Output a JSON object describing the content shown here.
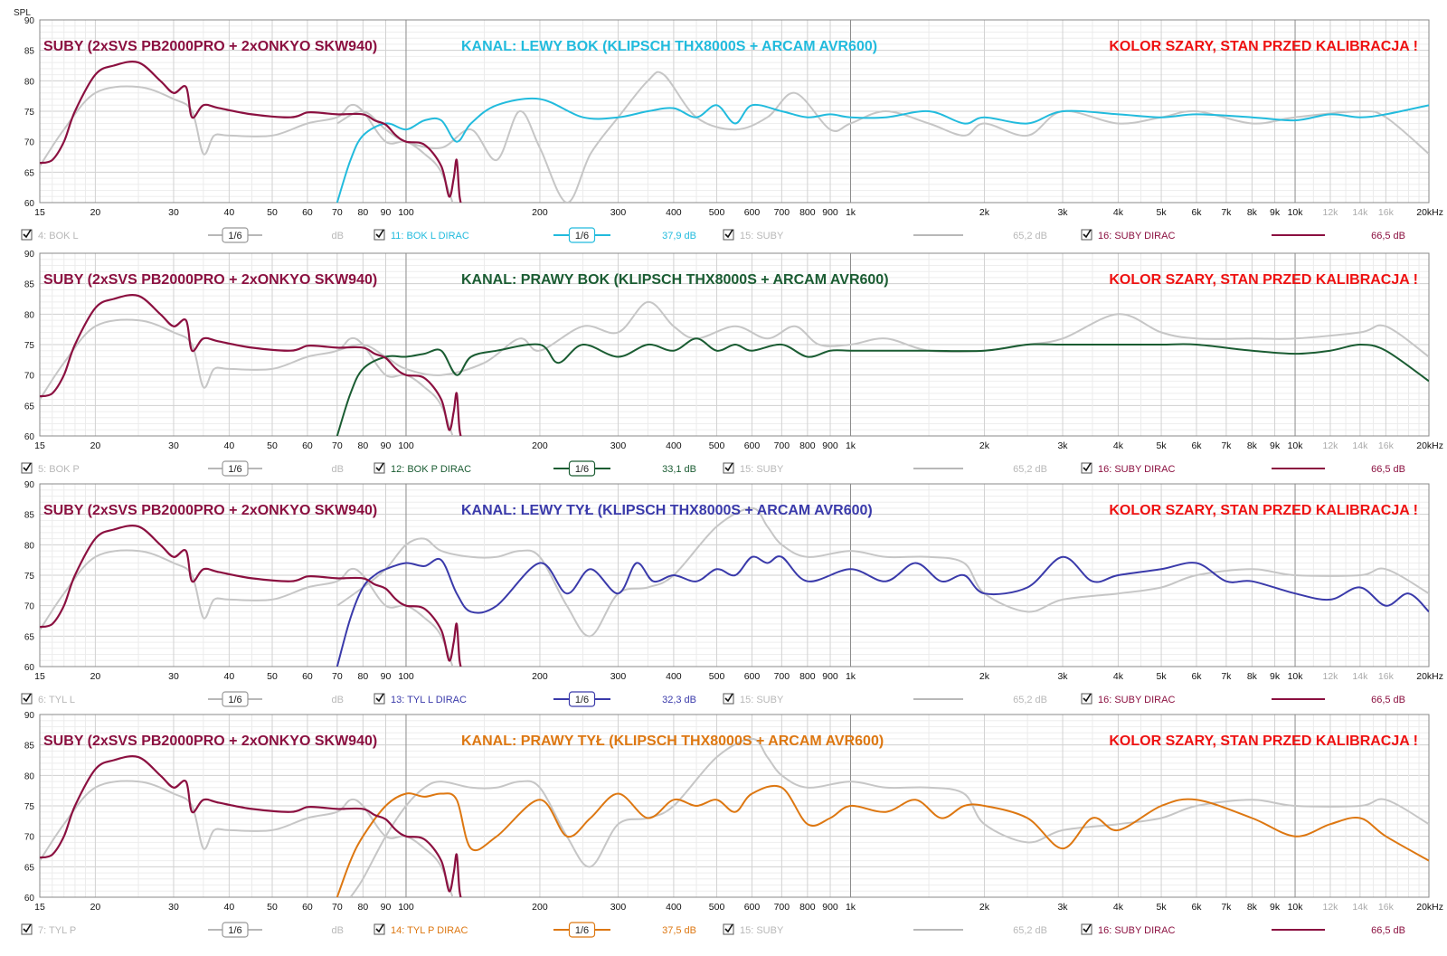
{
  "y_axis_label": "SPL",
  "x_ticks": [
    {
      "f": 15,
      "label": "15"
    },
    {
      "f": 20,
      "label": "20"
    },
    {
      "f": 30,
      "label": "30"
    },
    {
      "f": 40,
      "label": "40"
    },
    {
      "f": 50,
      "label": "50"
    },
    {
      "f": 60,
      "label": "60"
    },
    {
      "f": 70,
      "label": "70"
    },
    {
      "f": 80,
      "label": "80"
    },
    {
      "f": 90,
      "label": "90"
    },
    {
      "f": 100,
      "label": "100"
    },
    {
      "f": 200,
      "label": "200"
    },
    {
      "f": 300,
      "label": "300"
    },
    {
      "f": 400,
      "label": "400"
    },
    {
      "f": 500,
      "label": "500"
    },
    {
      "f": 600,
      "label": "600"
    },
    {
      "f": 700,
      "label": "700"
    },
    {
      "f": 800,
      "label": "800"
    },
    {
      "f": 900,
      "label": "900"
    },
    {
      "f": 1000,
      "label": "1k"
    },
    {
      "f": 2000,
      "label": "2k"
    },
    {
      "f": 3000,
      "label": "3k"
    },
    {
      "f": 4000,
      "label": "4k"
    },
    {
      "f": 5000,
      "label": "5k"
    },
    {
      "f": 6000,
      "label": "6k"
    },
    {
      "f": 7000,
      "label": "7k"
    },
    {
      "f": 8000,
      "label": "8k"
    },
    {
      "f": 9000,
      "label": "9k"
    },
    {
      "f": 10000,
      "label": "10k"
    },
    {
      "f": 12000,
      "label": "12k",
      "light": true
    },
    {
      "f": 14000,
      "label": "14k",
      "light": true
    },
    {
      "f": 16000,
      "label": "16k",
      "light": true
    },
    {
      "f": 20000,
      "label": "20kHz"
    }
  ],
  "y_ticks": [
    60,
    65,
    70,
    75,
    80,
    85,
    90
  ],
  "panels": [
    {
      "title_left": "SUBY (2xSVS PB2000PRO + 2xONKYO SKW940)",
      "title_center": "KANAL: LEWY BOK (KLIPSCH THX8000S + ARCAM AVR600)",
      "title_right": "KOLOR SZARY, STAN PRZED KALIBRACJA !",
      "color": "#22bbdd",
      "legend": [
        {
          "label": "4: BOK L",
          "active": false,
          "smoothing": "1/6",
          "value": "dB"
        },
        {
          "label": "11: BOK L DIRAC",
          "active": true,
          "smoothing": "1/6",
          "value": "37,9 dB"
        },
        {
          "label": "15: SUBY",
          "active": false,
          "value": "65,2 dB"
        },
        {
          "label": "16: SUBY DIRAC",
          "active": true,
          "value": "66,5 dB"
        }
      ]
    },
    {
      "title_left": "SUBY (2xSVS PB2000PRO + 2xONKYO SKW940)",
      "title_center": "KANAL: PRAWY BOK (KLIPSCH THX8000S + ARCAM AVR600)",
      "title_right": "KOLOR SZARY, STAN PRZED KALIBRACJA !",
      "color": "#1a5c32",
      "legend": [
        {
          "label": "5: BOK P",
          "active": false,
          "smoothing": "1/6",
          "value": "dB"
        },
        {
          "label": "12: BOK P DIRAC",
          "active": true,
          "smoothing": "1/6",
          "value": "33,1 dB"
        },
        {
          "label": "15: SUBY",
          "active": false,
          "value": "65,2 dB"
        },
        {
          "label": "16: SUBY DIRAC",
          "active": true,
          "value": "66,5 dB"
        }
      ]
    },
    {
      "title_left": "SUBY (2xSVS PB2000PRO + 2xONKYO SKW940)",
      "title_center": "KANAL: LEWY TYŁ (KLIPSCH THX8000S + ARCAM AVR600)",
      "title_right": "KOLOR SZARY, STAN PRZED KALIBRACJA !",
      "color": "#3a3aaa",
      "legend": [
        {
          "label": "6: TYL L",
          "active": false,
          "smoothing": "1/6",
          "value": "dB"
        },
        {
          "label": "13: TYL L DIRAC",
          "active": true,
          "smoothing": "1/6",
          "value": "32,3 dB"
        },
        {
          "label": "15: SUBY",
          "active": false,
          "value": "65,2 dB"
        },
        {
          "label": "16: SUBY DIRAC",
          "active": true,
          "value": "66,5 dB"
        }
      ]
    },
    {
      "title_left": "SUBY (2xSVS PB2000PRO + 2xONKYO SKW940)",
      "title_center": "KANAL: PRAWY TYŁ (KLIPSCH THX8000S + ARCAM AVR600)",
      "title_right": "KOLOR SZARY, STAN PRZED KALIBRACJA !",
      "color": "#dd7711",
      "legend": [
        {
          "label": "7: TYL P",
          "active": false,
          "smoothing": "1/6",
          "value": "dB"
        },
        {
          "label": "14: TYL P DIRAC",
          "active": true,
          "smoothing": "1/6",
          "value": "37,5 dB"
        },
        {
          "label": "15: SUBY",
          "active": false,
          "value": "65,2 dB"
        },
        {
          "label": "16: SUBY DIRAC",
          "active": true,
          "value": "66,5 dB"
        }
      ]
    }
  ],
  "colors": {
    "sub_title": "#8b1040",
    "warning": "#ee1111",
    "grey_curve": "#c6c6c6",
    "subs_curve": "#8b1040"
  },
  "chart_data": [
    {
      "type": "line",
      "xscale": "log",
      "xlim": [
        15,
        20000
      ],
      "ylim": [
        60,
        90
      ],
      "ylabel": "SPL",
      "grid": true,
      "series": [
        {
          "name": "16: SUBY DIRAC",
          "role": "subs_dirac",
          "x": [
            15,
            16,
            17,
            18,
            20,
            22,
            25,
            28,
            30,
            32,
            33,
            35,
            38,
            45,
            55,
            60,
            65,
            70,
            80,
            85,
            90,
            95,
            100,
            110,
            120,
            125,
            128,
            130,
            132,
            135
          ],
          "y": [
            66.5,
            67,
            70,
            75,
            81,
            82.5,
            83,
            80,
            78,
            79,
            74,
            76,
            75.5,
            74.5,
            74,
            74.8,
            74.7,
            74.5,
            74.5,
            73.5,
            72.8,
            71,
            70,
            69.5,
            66,
            61,
            64,
            67,
            61,
            58
          ]
        },
        {
          "name": "15: SUBY",
          "role": "subs_before",
          "x": [
            15,
            17,
            20,
            25,
            30,
            33,
            35,
            37,
            40,
            50,
            60,
            70,
            75,
            80,
            90,
            100,
            110,
            120,
            130
          ],
          "y": [
            66,
            72,
            78,
            79,
            77,
            75,
            68,
            71,
            71,
            71,
            73,
            74,
            76,
            75,
            70,
            70,
            68,
            65,
            58
          ]
        },
        {
          "name": "4: BOK L",
          "role": "before",
          "x": [
            70,
            80,
            90,
            100,
            120,
            140,
            160,
            180,
            200,
            230,
            260,
            300,
            350,
            380,
            450,
            550,
            650,
            750,
            900,
            1000,
            1200,
            1500,
            1800,
            2000,
            2500,
            3000,
            4000,
            5000,
            6000,
            8000,
            10000,
            14000,
            16000,
            20000
          ],
          "y": [
            73,
            75,
            72,
            70,
            69,
            72,
            67,
            75,
            69,
            60,
            68,
            74,
            80,
            81,
            74,
            72,
            74,
            78,
            72,
            73,
            75,
            73,
            71,
            73,
            71,
            75,
            73,
            74,
            75,
            73,
            74,
            75,
            74,
            68
          ]
        },
        {
          "name": "11: BOK L DIRAC",
          "role": "after",
          "x": [
            70,
            75,
            80,
            90,
            100,
            110,
            120,
            130,
            140,
            160,
            200,
            250,
            300,
            350,
            400,
            450,
            500,
            550,
            600,
            700,
            800,
            900,
            1000,
            1200,
            1500,
            1800,
            2000,
            2500,
            3000,
            4000,
            5000,
            6000,
            8000,
            10000,
            12000,
            14000,
            16000,
            20000
          ],
          "y": [
            60,
            67,
            71,
            73,
            72,
            73.5,
            73.5,
            70,
            73,
            76,
            77,
            74,
            74,
            75,
            75.5,
            74,
            76,
            73,
            76,
            75,
            74,
            74.5,
            74,
            74,
            75,
            73,
            74,
            73,
            75,
            74.5,
            74,
            74.5,
            74,
            73.5,
            74.5,
            74,
            74.5,
            76
          ]
        },
        {
          "name": "5: BOK P",
          "role": "before",
          "x": [
            70,
            80,
            90,
            100,
            120,
            150,
            180,
            200,
            250,
            300,
            350,
            400,
            450,
            550,
            650,
            750,
            850,
            1000,
            1200,
            1500,
            2000,
            2500,
            3000,
            4000,
            5000,
            6000,
            8000,
            10000,
            14000,
            16000,
            20000
          ],
          "y": [
            74,
            75,
            73,
            71,
            70,
            72,
            76,
            74,
            78,
            77,
            82,
            78,
            76,
            78,
            76,
            78,
            75,
            75,
            76,
            74,
            74,
            75,
            76,
            80,
            77,
            76,
            76,
            76,
            77,
            78,
            73
          ]
        },
        {
          "name": "12: BOK P DIRAC",
          "role": "after",
          "x": [
            70,
            75,
            80,
            90,
            100,
            110,
            120,
            130,
            140,
            160,
            200,
            220,
            250,
            300,
            350,
            400,
            450,
            500,
            550,
            600,
            700,
            800,
            900,
            1000,
            1200,
            1500,
            2000,
            2500,
            3000,
            4000,
            5000,
            6000,
            8000,
            10000,
            12000,
            14000,
            16000,
            20000
          ],
          "y": [
            60,
            67,
            71,
            73,
            73,
            73.5,
            74,
            70,
            73,
            74,
            75,
            72,
            75,
            73,
            75,
            74,
            76,
            74,
            75,
            74,
            75,
            73,
            74,
            74,
            74,
            74,
            74,
            75,
            75,
            75,
            75,
            75,
            74,
            73.5,
            74,
            75,
            74,
            69
          ]
        },
        {
          "name": "6: TYL L",
          "role": "before",
          "x": [
            70,
            80,
            90,
            100,
            110,
            120,
            140,
            160,
            180,
            200,
            230,
            260,
            300,
            350,
            400,
            500,
            600,
            650,
            700,
            800,
            1000,
            1200,
            1500,
            1800,
            2000,
            2500,
            3000,
            4000,
            5000,
            6000,
            8000,
            10000,
            14000,
            16000,
            20000
          ],
          "y": [
            70,
            73,
            76,
            80,
            81,
            79,
            78,
            78,
            79,
            78,
            70,
            65,
            72,
            73,
            75,
            83,
            86,
            83,
            80,
            78,
            79,
            78,
            78,
            77,
            72,
            69,
            71,
            72,
            73,
            75,
            76,
            75,
            75,
            76,
            72
          ]
        },
        {
          "name": "13: TYL L DIRAC",
          "role": "after",
          "x": [
            70,
            75,
            80,
            85,
            90,
            100,
            110,
            120,
            130,
            140,
            160,
            200,
            230,
            260,
            300,
            330,
            360,
            400,
            450,
            500,
            550,
            600,
            650,
            700,
            800,
            1000,
            1200,
            1400,
            1600,
            1800,
            2000,
            2500,
            3000,
            3500,
            4000,
            5000,
            6000,
            7000,
            8000,
            10000,
            12000,
            14000,
            16000,
            18000,
            20000
          ],
          "y": [
            60,
            68,
            73,
            75,
            76,
            77,
            76.5,
            77.5,
            72,
            69,
            70,
            77,
            72,
            76,
            72,
            77,
            74,
            75,
            74,
            76,
            75,
            78,
            77,
            78,
            74,
            76,
            74,
            77,
            74,
            75,
            72,
            73,
            78,
            74,
            75,
            76,
            77,
            74,
            74,
            72,
            71,
            73,
            70,
            72,
            69
          ]
        },
        {
          "name": "7: TYL P",
          "role": "before",
          "x": [
            75,
            80,
            90,
            100,
            110,
            120,
            140,
            160,
            180,
            200,
            230,
            260,
            300,
            350,
            400,
            500,
            600,
            650,
            700,
            800,
            1000,
            1200,
            1500,
            1800,
            2000,
            2500,
            3000,
            4000,
            5000,
            6000,
            8000,
            10000,
            14000,
            16000,
            20000
          ],
          "y": [
            60,
            63,
            70,
            75,
            78,
            79,
            78,
            78,
            79,
            78,
            70,
            65,
            72,
            73,
            75,
            83,
            86,
            83,
            80,
            78,
            79,
            78,
            78,
            77,
            72,
            69,
            71,
            72,
            73,
            75,
            76,
            75,
            75,
            76,
            72
          ]
        },
        {
          "name": "14: TYL P DIRAC",
          "role": "after",
          "x": [
            70,
            75,
            80,
            90,
            100,
            110,
            120,
            130,
            140,
            160,
            200,
            230,
            260,
            300,
            350,
            400,
            450,
            500,
            550,
            600,
            700,
            800,
            900,
            1000,
            1200,
            1400,
            1600,
            1800,
            2000,
            2500,
            3000,
            3500,
            4000,
            5000,
            6000,
            8000,
            10000,
            12000,
            14000,
            16000,
            20000
          ],
          "y": [
            60,
            66,
            70,
            75,
            77,
            76.5,
            77,
            76,
            68,
            70,
            76,
            70,
            73,
            77,
            73,
            76,
            75,
            76,
            74,
            77,
            78,
            72,
            73,
            75,
            74,
            76,
            73,
            75,
            75,
            73,
            68,
            73,
            71,
            75,
            76,
            73,
            70,
            72,
            73,
            70,
            66
          ]
        }
      ]
    }
  ]
}
